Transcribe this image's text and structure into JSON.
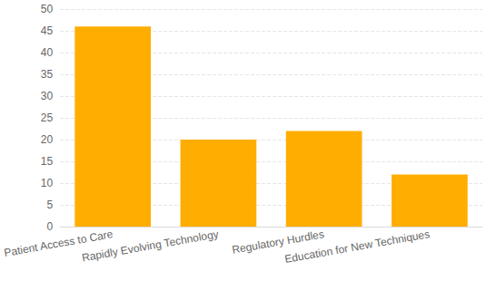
{
  "chart_data": {
    "type": "bar",
    "categories": [
      "Patient Access to Care",
      "Rapidly Evolving Technology",
      "Regulatory Hurdles",
      "Education for New Techniques"
    ],
    "values": [
      46,
      20,
      22,
      12
    ],
    "color": "#ffad00",
    "ylim": [
      0,
      50
    ],
    "yticks": [
      0,
      5,
      10,
      15,
      20,
      25,
      30,
      35,
      40,
      45,
      50
    ],
    "grid": true
  }
}
